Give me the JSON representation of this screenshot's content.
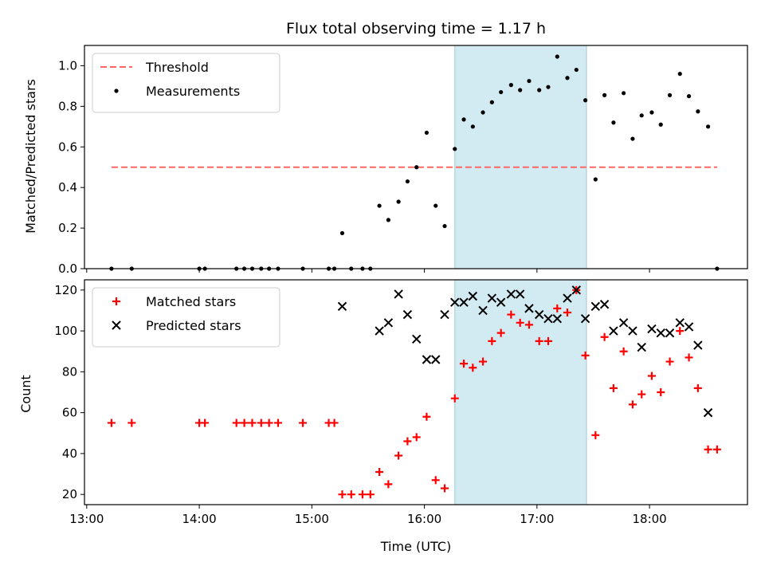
{
  "chart_data": {
    "title": "Flux total observing time = 1.17 h",
    "xlabel": "Time (UTC)",
    "x_ticks": [
      "13:00",
      "14:00",
      "15:00",
      "16:00",
      "17:00",
      "18:00"
    ],
    "x_range_hours": [
      12.98,
      18.87
    ],
    "observing_window_hours": [
      16.27,
      17.44
    ],
    "observing_window_color": "#add8e6",
    "panels": [
      {
        "type": "scatter",
        "ylabel": "Matched/Predicted stars",
        "ylim": [
          0,
          1.1
        ],
        "y_ticks": [
          0.0,
          0.2,
          0.4,
          0.6,
          0.8,
          1.0
        ],
        "legend_placement": "upper-left",
        "series": [
          {
            "name": "Threshold",
            "kind": "dashed-line",
            "color": "#ff6666",
            "y": 0.5,
            "x_range": [
              13.22,
              18.6
            ]
          },
          {
            "name": "Measurements",
            "kind": "dot",
            "color": "#000000",
            "points": [
              [
                13.22,
                0
              ],
              [
                13.4,
                0
              ],
              [
                14.0,
                0
              ],
              [
                14.05,
                0
              ],
              [
                14.33,
                0
              ],
              [
                14.4,
                0
              ],
              [
                14.47,
                0
              ],
              [
                14.55,
                0
              ],
              [
                14.62,
                0
              ],
              [
                14.7,
                0
              ],
              [
                14.92,
                0
              ],
              [
                15.15,
                0
              ],
              [
                15.2,
                0
              ],
              [
                15.27,
                0.175
              ],
              [
                15.35,
                0
              ],
              [
                15.45,
                0
              ],
              [
                15.52,
                0
              ],
              [
                15.6,
                0.31
              ],
              [
                15.68,
                0.24
              ],
              [
                15.77,
                0.33
              ],
              [
                15.85,
                0.43
              ],
              [
                15.93,
                0.5
              ],
              [
                16.02,
                0.67
              ],
              [
                16.1,
                0.31
              ],
              [
                16.18,
                0.21
              ],
              [
                16.27,
                0.59
              ],
              [
                16.35,
                0.735
              ],
              [
                16.43,
                0.7
              ],
              [
                16.52,
                0.77
              ],
              [
                16.6,
                0.82
              ],
              [
                16.68,
                0.87
              ],
              [
                16.77,
                0.905
              ],
              [
                16.85,
                0.88
              ],
              [
                16.93,
                0.925
              ],
              [
                17.02,
                0.88
              ],
              [
                17.1,
                0.895
              ],
              [
                17.18,
                1.045
              ],
              [
                17.27,
                0.94
              ],
              [
                17.35,
                0.98
              ],
              [
                17.43,
                0.83
              ],
              [
                17.52,
                0.44
              ],
              [
                17.6,
                0.855
              ],
              [
                17.68,
                0.72
              ],
              [
                17.77,
                0.865
              ],
              [
                17.85,
                0.64
              ],
              [
                17.93,
                0.755
              ],
              [
                18.02,
                0.77
              ],
              [
                18.1,
                0.71
              ],
              [
                18.18,
                0.855
              ],
              [
                18.27,
                0.96
              ],
              [
                18.35,
                0.85
              ],
              [
                18.43,
                0.775
              ],
              [
                18.52,
                0.7
              ],
              [
                18.6,
                0
              ]
            ]
          }
        ]
      },
      {
        "type": "scatter",
        "ylabel": "Count",
        "ylim": [
          15,
          125
        ],
        "y_ticks": [
          20,
          40,
          60,
          80,
          100,
          120
        ],
        "legend_placement": "upper-left",
        "series": [
          {
            "name": "Matched stars",
            "kind": "plus",
            "color": "#ff0000",
            "points": [
              [
                13.22,
                55
              ],
              [
                13.4,
                55
              ],
              [
                14.0,
                55
              ],
              [
                14.05,
                55
              ],
              [
                14.33,
                55
              ],
              [
                14.4,
                55
              ],
              [
                14.47,
                55
              ],
              [
                14.55,
                55
              ],
              [
                14.62,
                55
              ],
              [
                14.7,
                55
              ],
              [
                14.92,
                55
              ],
              [
                15.15,
                55
              ],
              [
                15.2,
                55
              ],
              [
                15.27,
                20
              ],
              [
                15.35,
                20
              ],
              [
                15.45,
                20
              ],
              [
                15.52,
                20
              ],
              [
                15.6,
                31
              ],
              [
                15.68,
                25
              ],
              [
                15.77,
                39
              ],
              [
                15.85,
                46
              ],
              [
                15.93,
                48
              ],
              [
                16.02,
                58
              ],
              [
                16.1,
                27
              ],
              [
                16.18,
                23
              ],
              [
                16.27,
                67
              ],
              [
                16.35,
                84
              ],
              [
                16.43,
                82
              ],
              [
                16.52,
                85
              ],
              [
                16.6,
                95
              ],
              [
                16.68,
                99
              ],
              [
                16.77,
                108
              ],
              [
                16.85,
                104
              ],
              [
                16.93,
                103
              ],
              [
                17.02,
                95
              ],
              [
                17.1,
                95
              ],
              [
                17.18,
                111
              ],
              [
                17.27,
                109
              ],
              [
                17.35,
                120
              ],
              [
                17.43,
                88
              ],
              [
                17.52,
                49
              ],
              [
                17.6,
                97
              ],
              [
                17.68,
                72
              ],
              [
                17.77,
                90
              ],
              [
                17.85,
                64
              ],
              [
                17.93,
                69
              ],
              [
                18.02,
                78
              ],
              [
                18.1,
                70
              ],
              [
                18.18,
                85
              ],
              [
                18.27,
                100
              ],
              [
                18.35,
                87
              ],
              [
                18.43,
                72
              ],
              [
                18.52,
                42
              ],
              [
                18.6,
                42
              ]
            ]
          },
          {
            "name": "Predicted stars",
            "kind": "cross",
            "color": "#000000",
            "points": [
              [
                15.27,
                112
              ],
              [
                15.6,
                100
              ],
              [
                15.68,
                104
              ],
              [
                15.77,
                118
              ],
              [
                15.85,
                108
              ],
              [
                15.93,
                96
              ],
              [
                16.02,
                86
              ],
              [
                16.1,
                86
              ],
              [
                16.18,
                108
              ],
              [
                16.27,
                114
              ],
              [
                16.35,
                114
              ],
              [
                16.43,
                117
              ],
              [
                16.52,
                110
              ],
              [
                16.6,
                116
              ],
              [
                16.68,
                114
              ],
              [
                16.77,
                118
              ],
              [
                16.85,
                118
              ],
              [
                16.93,
                111
              ],
              [
                17.02,
                108
              ],
              [
                17.1,
                106
              ],
              [
                17.18,
                106
              ],
              [
                17.27,
                116
              ],
              [
                17.35,
                120
              ],
              [
                17.43,
                106
              ],
              [
                17.52,
                112
              ],
              [
                17.6,
                113
              ],
              [
                17.68,
                100
              ],
              [
                17.77,
                104
              ],
              [
                17.85,
                100
              ],
              [
                17.93,
                92
              ],
              [
                18.02,
                101
              ],
              [
                18.1,
                99
              ],
              [
                18.18,
                99
              ],
              [
                18.27,
                104
              ],
              [
                18.35,
                102
              ],
              [
                18.43,
                93
              ],
              [
                18.52,
                60
              ]
            ]
          }
        ]
      }
    ]
  }
}
